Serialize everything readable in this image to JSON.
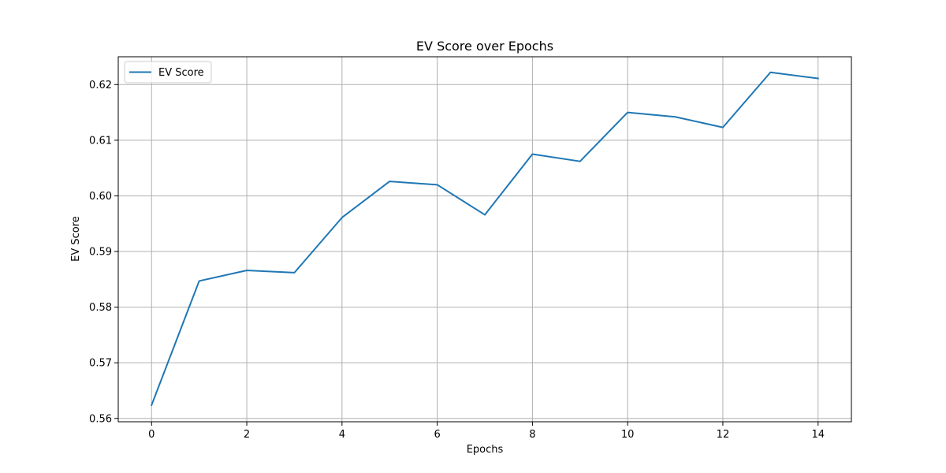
{
  "chart_data": {
    "type": "line",
    "title": "EV Score over Epochs",
    "xlabel": "Epochs",
    "ylabel": "EV Score",
    "x": [
      0,
      1,
      2,
      3,
      4,
      5,
      6,
      7,
      8,
      9,
      10,
      11,
      12,
      13,
      14
    ],
    "series": [
      {
        "name": "EV Score",
        "color": "#1f77b4",
        "values": [
          0.5624,
          0.5847,
          0.5866,
          0.5862,
          0.5961,
          0.6026,
          0.602,
          0.5966,
          0.6075,
          0.6062,
          0.615,
          0.6142,
          0.6123,
          0.6222,
          0.6211
        ]
      }
    ],
    "xlim": [
      -0.7,
      14.7
    ],
    "ylim": [
      0.5594,
      0.625
    ],
    "xticks": [
      0,
      2,
      4,
      6,
      8,
      10,
      12,
      14
    ],
    "xtick_labels": [
      "0",
      "2",
      "4",
      "6",
      "8",
      "10",
      "12",
      "14"
    ],
    "yticks": [
      0.56,
      0.57,
      0.58,
      0.59,
      0.6,
      0.61,
      0.62
    ],
    "ytick_labels": [
      "0.56",
      "0.57",
      "0.58",
      "0.59",
      "0.60",
      "0.61",
      "0.62"
    ],
    "grid": true,
    "legend_placement": "upper-left",
    "colors": {
      "grid": "#b0b0b0",
      "axes": "#000000",
      "background": "#ffffff"
    }
  }
}
